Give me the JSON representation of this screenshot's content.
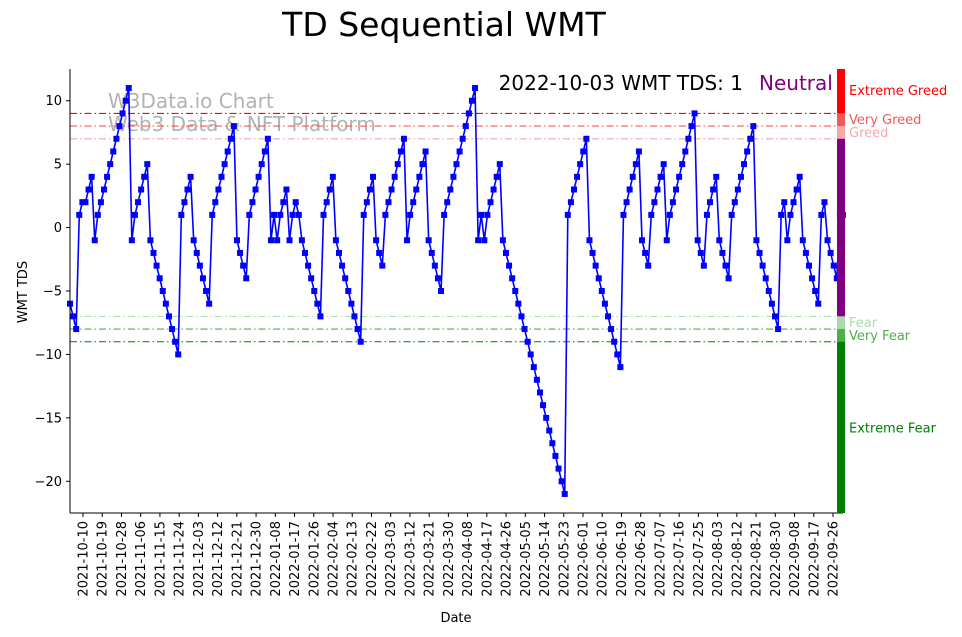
{
  "chart_data": {
    "type": "line",
    "title": "TD Sequential WMT",
    "subtitle": "2022-10-03 WMT TDS: 1",
    "status": {
      "label": "Neutral",
      "color": "#800080"
    },
    "watermark": [
      "W3Data.io Chart",
      "Web3 Data & NFT Platform"
    ],
    "xlabel": "Date",
    "ylabel": "WMT TDS",
    "ylim": [
      -22.5,
      12.5
    ],
    "yticks": [
      10,
      5,
      0,
      -5,
      -10,
      -15,
      -20
    ],
    "ytick_labels": [
      "10",
      "5",
      "0",
      "−5",
      "−10",
      "−15",
      "−20"
    ],
    "xtick_labels": [
      "2021-10-10",
      "2021-10-19",
      "2021-10-28",
      "2021-11-06",
      "2021-11-15",
      "2021-11-24",
      "2021-12-03",
      "2021-12-12",
      "2021-12-21",
      "2021-12-30",
      "2022-01-08",
      "2022-01-17",
      "2022-01-26",
      "2022-02-04",
      "2022-02-13",
      "2022-02-22",
      "2022-03-03",
      "2022-03-12",
      "2022-03-21",
      "2022-03-30",
      "2022-04-08",
      "2022-04-17",
      "2022-04-26",
      "2022-05-05",
      "2022-05-14",
      "2022-05-23",
      "2022-06-01",
      "2022-06-10",
      "2022-06-19",
      "2022-06-28",
      "2022-07-07",
      "2022-07-16",
      "2022-07-25",
      "2022-08-03",
      "2022-08-12",
      "2022-08-21",
      "2022-08-30",
      "2022-09-08",
      "2022-09-17",
      "2022-09-26"
    ],
    "series": [
      {
        "name": "WMT TDS",
        "color": "#0000ff",
        "values": [
          -6,
          -7,
          -8,
          1,
          2,
          2,
          3,
          4,
          -1,
          1,
          2,
          3,
          4,
          5,
          6,
          7,
          8,
          9,
          10,
          11,
          -1,
          1,
          2,
          3,
          4,
          5,
          -1,
          -2,
          -3,
          -4,
          -5,
          -6,
          -7,
          -8,
          -9,
          -10,
          1,
          2,
          3,
          4,
          -1,
          -2,
          -3,
          -4,
          -5,
          -6,
          1,
          2,
          3,
          4,
          5,
          6,
          7,
          8,
          -1,
          -2,
          -3,
          -4,
          1,
          2,
          3,
          4,
          5,
          6,
          7,
          -1,
          1,
          -1,
          1,
          2,
          3,
          -1,
          1,
          2,
          1,
          -1,
          -2,
          -3,
          -4,
          -5,
          -6,
          -7,
          1,
          2,
          3,
          4,
          -1,
          -2,
          -3,
          -4,
          -5,
          -6,
          -7,
          -8,
          -9,
          1,
          2,
          3,
          4,
          -1,
          -2,
          -3,
          1,
          2,
          3,
          4,
          5,
          6,
          7,
          -1,
          1,
          2,
          3,
          4,
          5,
          6,
          -1,
          -2,
          -3,
          -4,
          -5,
          1,
          2,
          3,
          4,
          5,
          6,
          7,
          8,
          9,
          10,
          11,
          -1,
          1,
          -1,
          1,
          2,
          3,
          4,
          5,
          -1,
          -2,
          -3,
          -4,
          -5,
          -6,
          -7,
          -8,
          -9,
          -10,
          -11,
          -12,
          -13,
          -14,
          -15,
          -16,
          -17,
          -18,
          -19,
          -20,
          -21,
          1,
          2,
          3,
          4,
          5,
          6,
          7,
          -1,
          -2,
          -3,
          -4,
          -5,
          -6,
          -7,
          -8,
          -9,
          -10,
          -11,
          1,
          2,
          3,
          4,
          5,
          6,
          -1,
          -2,
          -3,
          1,
          2,
          3,
          4,
          5,
          -1,
          1,
          2,
          3,
          4,
          5,
          6,
          7,
          8,
          9,
          -1,
          -2,
          -3,
          1,
          2,
          3,
          4,
          -1,
          -2,
          -3,
          -4,
          1,
          2,
          3,
          4,
          5,
          6,
          7,
          8,
          -1,
          -2,
          -3,
          -4,
          -5,
          -6,
          -7,
          -8,
          1,
          2,
          -1,
          1,
          2,
          3,
          4,
          -1,
          -2,
          -3,
          -4,
          -5,
          -6,
          1,
          2,
          -1,
          -2,
          -3,
          -4,
          1,
          1
        ]
      }
    ],
    "thresholds": [
      {
        "value": 9,
        "color": "#ff0000",
        "label": "Extreme Greed"
      },
      {
        "value": 8,
        "color": "#f05a5a",
        "label": "Very Greed"
      },
      {
        "value": 7,
        "color": "#f4a8a8",
        "label": "Greed"
      },
      {
        "value": -7,
        "color": "#a8dca8",
        "label": "Fear"
      },
      {
        "value": -8,
        "color": "#4caf4c",
        "label": "Very Fear"
      },
      {
        "value": -9,
        "color": "#008000",
        "label": "Extreme Fear"
      }
    ],
    "sidebar_zones": [
      {
        "from": 9,
        "to": 12.5,
        "color": "#ff0000",
        "label": "Extreme Greed",
        "label_at": 10.8,
        "label_color": "#ff0000"
      },
      {
        "from": 8,
        "to": 9,
        "color": "#f05a5a",
        "label": "Very Greed",
        "label_at": 8.5,
        "label_color": "#f05a5a"
      },
      {
        "from": 7,
        "to": 8,
        "color": "#f4a8a8",
        "label": "Greed",
        "label_at": 7.5,
        "label_color": "#f4a8a8"
      },
      {
        "from": -7,
        "to": 7,
        "color": "#800080",
        "label": "",
        "label_at": 0,
        "label_color": "#800080"
      },
      {
        "from": -8,
        "to": -7,
        "color": "#a8dca8",
        "label": "Fear",
        "label_at": -7.5,
        "label_color": "#a8dca8"
      },
      {
        "from": -9,
        "to": -8,
        "color": "#4caf4c",
        "label": "Very Fear",
        "label_at": -8.5,
        "label_color": "#4caf4c"
      },
      {
        "from": -22.5,
        "to": -9,
        "color": "#008000",
        "label": "Extreme Fear",
        "label_at": -15.8,
        "label_color": "#008000"
      }
    ]
  }
}
